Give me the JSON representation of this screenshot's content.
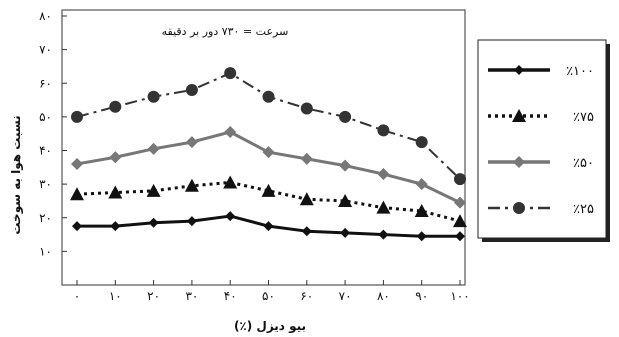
{
  "chart_data": {
    "type": "line",
    "xlabel": "بیو دیزل (٪)",
    "ylabel": "نسبت هوا به سوخت",
    "annotation": "سرعت = ۷۳۰ دور بر دقیقه",
    "x": [
      0,
      10,
      20,
      30,
      40,
      50,
      60,
      70,
      80,
      90,
      100
    ],
    "x_tick_labels": [
      "۰",
      "۱۰",
      "۲۰",
      "۳۰",
      "۴۰",
      "۵۰",
      "۶۰",
      "۷۰",
      "۸۰",
      "۹۰",
      "۱۰۰"
    ],
    "xlim": [
      0,
      100
    ],
    "ylim": [
      0,
      80
    ],
    "y_ticks": [
      10,
      20,
      30,
      40,
      50,
      60,
      70,
      80
    ],
    "y_tick_labels": [
      "۱۰",
      "۲۰",
      "۳۰",
      "۴۰",
      "۵۰",
      "۶۰",
      "۷۰",
      "۸۰"
    ],
    "grid": false,
    "legend_position": "right",
    "series": [
      {
        "name": "٪۱۰۰",
        "marker": "diamond-small",
        "line": "solid",
        "color": "#111111",
        "values": [
          17.5,
          17.5,
          18.5,
          19,
          20.5,
          17.5,
          16,
          15.5,
          15,
          14.5,
          14.5
        ]
      },
      {
        "name": "٪۷۵",
        "marker": "triangle",
        "line": "dotted",
        "color": "#111111",
        "values": [
          27,
          27.5,
          28,
          29.5,
          30.5,
          28,
          25.5,
          25,
          23,
          22,
          19
        ]
      },
      {
        "name": "٪۵۰",
        "marker": "diamond",
        "line": "solid",
        "color": "#777777",
        "values": [
          36,
          38,
          40.5,
          42.5,
          45.5,
          39.5,
          37.5,
          35.5,
          33,
          30,
          24.5
        ]
      },
      {
        "name": "٪۲۵",
        "marker": "circle",
        "line": "dashdot",
        "color": "#333333",
        "values": [
          50,
          53,
          56,
          58,
          63,
          56,
          52.5,
          50,
          46,
          42.5,
          31.5
        ]
      }
    ]
  }
}
